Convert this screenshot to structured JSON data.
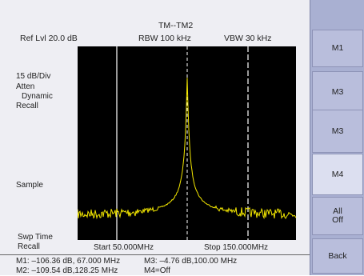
{
  "header": {
    "title": "TM--TM2",
    "ref_level": "Ref Lvl 20.0 dB",
    "rbw": "RBW 100 kHz",
    "vbw": "VBW 30 kHz"
  },
  "left_labels": {
    "scale": "15 dB/Div",
    "atten": "Atten",
    "dynamic": "Dynamic",
    "recall": "Recall",
    "sample": "Sample",
    "swp_time": "Swp Time",
    "swp_recall": "Recall"
  },
  "freq": {
    "start": "Start  50.000MHz",
    "stop": "Stop  150.000MHz"
  },
  "markers": {
    "m1": "M1: –106.36 dB, 67.000 MHz",
    "m2": "M2: –109.54 dB,128.25 MHz",
    "m3": "M3: –4.76 dB,100.00 MHz",
    "m4": "M4=Off"
  },
  "softkeys": [
    {
      "label": "M1"
    },
    {
      "label": "M3"
    },
    {
      "label": "M3"
    },
    {
      "label": "M4"
    },
    {
      "label": "All\nOff"
    },
    {
      "label": "Back"
    }
  ],
  "colors": {
    "trace": "#f2e600",
    "plot_bg": "#000000",
    "softkey_panel": "#a9b0d2"
  }
}
